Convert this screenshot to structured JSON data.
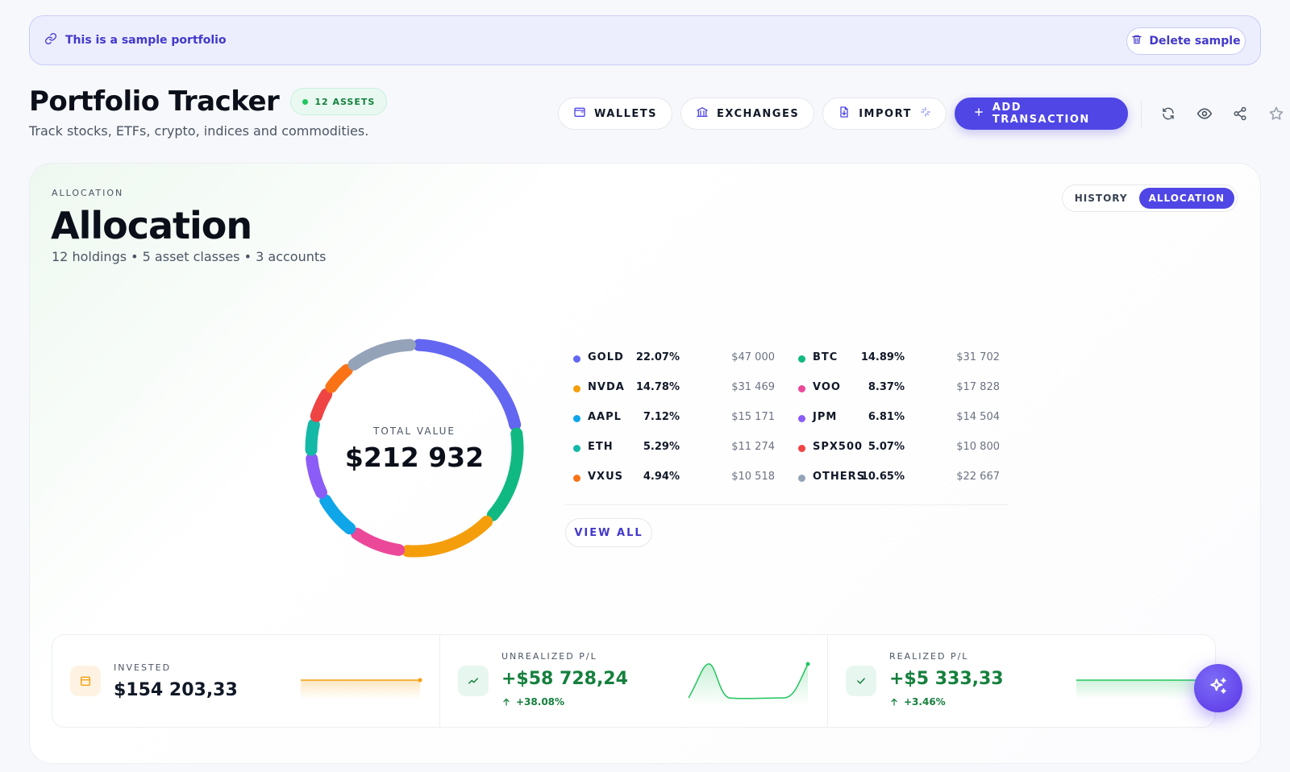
{
  "banner": {
    "text": "This is a sample portfolio",
    "delete_label": "Delete sample"
  },
  "header": {
    "title": "Portfolio Tracker",
    "badge": "12 ASSETS",
    "subtitle": "Track stocks, ETFs, crypto, indices and commodities."
  },
  "toolbar": {
    "wallets": "WALLETS",
    "exchanges": "EXCHANGES",
    "import": "IMPORT",
    "add_transaction": "ADD TRANSACTION",
    "icons": [
      "refresh-icon",
      "eye-icon",
      "share-icon",
      "star-icon"
    ]
  },
  "card": {
    "eyebrow": "ALLOCATION",
    "title": "Allocation",
    "subtitle": "12 holdings • 5 asset classes • 3 accounts",
    "toggle": {
      "history": "HISTORY",
      "allocation": "ALLOCATION",
      "active": "allocation"
    }
  },
  "donut": {
    "label": "TOTAL VALUE",
    "value": "$212 932"
  },
  "legend": [
    {
      "name": "GOLD",
      "pct": "22.07%",
      "value": "$47 000",
      "percent": 22.07,
      "color": "#6366f1"
    },
    {
      "name": "NVDA",
      "pct": "14.78%",
      "value": "$31 469",
      "percent": 14.78,
      "color": "#f59e0b"
    },
    {
      "name": "AAPL",
      "pct": "7.12%",
      "value": "$15 171",
      "percent": 7.12,
      "color": "#0ea5e9"
    },
    {
      "name": "ETH",
      "pct": "5.29%",
      "value": "$11 274",
      "percent": 5.29,
      "color": "#14b8a6"
    },
    {
      "name": "VXUS",
      "pct": "4.94%",
      "value": "$10 518",
      "percent": 4.94,
      "color": "#f97316"
    },
    {
      "name": "BTC",
      "pct": "14.89%",
      "value": "$31 702",
      "percent": 14.89,
      "color": "#10b981"
    },
    {
      "name": "VOO",
      "pct": "8.37%",
      "value": "$17 828",
      "percent": 8.37,
      "color": "#ec4899"
    },
    {
      "name": "JPM",
      "pct": "6.81%",
      "value": "$14 504",
      "percent": 6.81,
      "color": "#8b5cf6"
    },
    {
      "name": "SPX500",
      "pct": "5.07%",
      "value": "$10 800",
      "percent": 5.07,
      "color": "#ef4444"
    },
    {
      "name": "OTHERS",
      "pct": "10.65%",
      "value": "$22 667",
      "percent": 10.65,
      "color": "#94a3b8"
    }
  ],
  "view_all": "VIEW ALL",
  "stats": {
    "invested": {
      "label": "INVESTED",
      "value": "$154 203,33",
      "color": "#111827",
      "icon": "wallet-icon"
    },
    "unrealized": {
      "label": "UNREALIZED P/L",
      "value": "+$58 728,24",
      "change": "+38.08%",
      "color": "#15803d",
      "icon": "trend-up-icon"
    },
    "realized": {
      "label": "REALIZED P/L",
      "value": "+$5 333,33",
      "change": "+3.46%",
      "color": "#15803d",
      "icon": "check-icon"
    }
  },
  "colors": {
    "accent": "#4f46e5",
    "positive": "#15803d",
    "invested_line": "#f59e0b",
    "gain_line": "#22c55e"
  }
}
